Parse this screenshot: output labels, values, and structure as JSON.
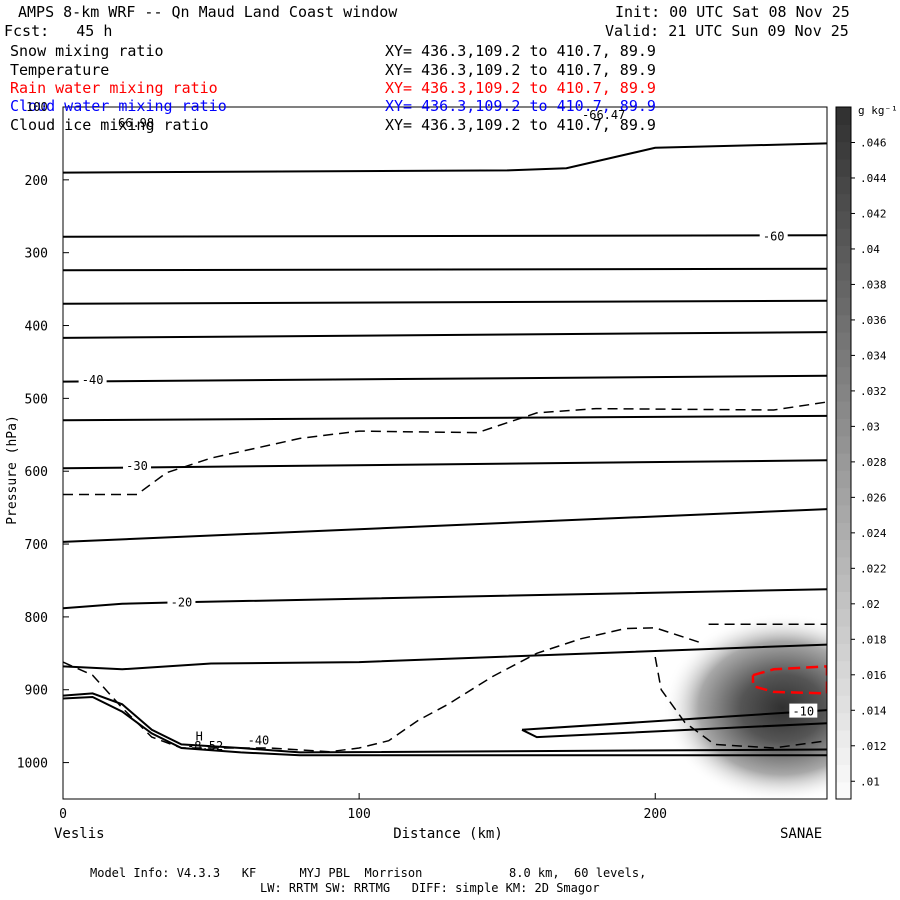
{
  "header": {
    "title": "AMPS 8-km WRF -- Qn Maud Land Coast window",
    "forecast": "Fcst:   45 h",
    "init": "Init: 00 UTC Sat 08 Nov 25",
    "valid": "Valid: 21 UTC Sun 09 Nov 25"
  },
  "fields": [
    {
      "name": "Snow mixing ratio",
      "xy": "XY= 436.3,109.2 to 410.7, 89.9",
      "color": "#000000"
    },
    {
      "name": "Temperature",
      "xy": "XY= 436.3,109.2 to 410.7, 89.9",
      "color": "#000000"
    },
    {
      "name": "Rain water mixing ratio",
      "xy": "XY= 436.3,109.2 to 410.7, 89.9",
      "color": "#ff0000"
    },
    {
      "name": "Cloud water mixing ratio",
      "xy": "XY= 436.3,109.2 to 410.7, 89.9",
      "color": "#0000ff"
    },
    {
      "name": "Cloud ice mixing ratio",
      "xy": "XY= 436.3,109.2 to 410.7, 89.9",
      "color": "#000000"
    }
  ],
  "overlap_labels": {
    "a": "100",
    "b": "66.98",
    "c": "-66.47"
  },
  "footer": {
    "line1": "Model Info: V4.3.3   KF      MYJ PBL  Morrison            8.0 km,  60 levels,",
    "line2": "LW: RRTM SW: RRTMG   DIFF: simple KM: 2D Smagor"
  },
  "chart_data": {
    "type": "cross-section",
    "xlabel": "Distance (km)",
    "ylabel": "Pressure (hPa)",
    "xlim": [
      0,
      258
    ],
    "ylim": [
      1050,
      100
    ],
    "x_ticks": [
      0,
      100,
      200
    ],
    "y_ticks": [
      200,
      300,
      400,
      500,
      600,
      700,
      800,
      900,
      1000
    ],
    "left_endpoint": "Veslis",
    "right_endpoint": "SANAE",
    "colorbar": {
      "unit": "g kg⁻¹",
      "min": 0.009,
      "max": 0.048,
      "tick_values": [
        0.046,
        0.044,
        0.042,
        0.04,
        0.038,
        0.036,
        0.034,
        0.032,
        0.03,
        0.028,
        0.026,
        0.024,
        0.022,
        0.02,
        0.018,
        0.016,
        0.014,
        0.012,
        0.01
      ],
      "tick_labels": [
        ".046",
        ".044",
        ".042",
        ".04",
        ".038",
        ".036",
        ".034",
        ".032",
        ".03",
        ".028",
        ".026",
        ".024",
        ".022",
        ".02",
        ".018",
        ".016",
        ".014",
        ".012",
        ".01"
      ]
    },
    "shaded_snow": {
      "x_center": 243,
      "p_center": 925,
      "peak": 0.046
    },
    "temperature_isotherms": [
      {
        "points": [
          [
            0,
            190
          ],
          [
            150,
            187
          ],
          [
            170,
            184
          ],
          [
            200,
            156
          ],
          [
            258,
            150
          ]
        ]
      },
      {
        "points": [
          [
            0,
            278
          ],
          [
            258,
            276
          ]
        ],
        "label": "-60",
        "label_at": [
          240,
          278
        ]
      },
      {
        "points": [
          [
            0,
            324
          ],
          [
            258,
            322
          ]
        ]
      },
      {
        "points": [
          [
            0,
            370
          ],
          [
            258,
            366
          ]
        ]
      },
      {
        "points": [
          [
            0,
            417
          ],
          [
            258,
            409
          ]
        ]
      },
      {
        "points": [
          [
            0,
            477
          ],
          [
            258,
            469
          ]
        ],
        "label": "-40",
        "label_at": [
          10,
          475
        ]
      },
      {
        "points": [
          [
            0,
            530
          ],
          [
            258,
            524
          ]
        ]
      },
      {
        "points": [
          [
            0,
            596
          ],
          [
            258,
            585
          ]
        ],
        "label": "-30",
        "label_at": [
          25,
          593
        ]
      },
      {
        "points": [
          [
            0,
            697
          ],
          [
            258,
            652
          ]
        ]
      },
      {
        "points": [
          [
            0,
            788
          ],
          [
            20,
            782
          ],
          [
            40,
            780
          ],
          [
            258,
            762
          ]
        ],
        "label": "-20",
        "label_at": [
          40,
          780
        ]
      },
      {
        "points": [
          [
            0,
            868
          ],
          [
            20,
            872
          ],
          [
            50,
            864
          ],
          [
            100,
            862
          ],
          [
            258,
            838
          ]
        ]
      },
      {
        "points": [
          [
            0,
            908
          ],
          [
            10,
            905
          ],
          [
            20,
            920
          ],
          [
            30,
            955
          ],
          [
            40,
            975
          ],
          [
            60,
            980
          ],
          [
            80,
            986
          ],
          [
            258,
            982
          ]
        ]
      },
      {
        "points": [
          [
            0,
            912
          ],
          [
            10,
            910
          ],
          [
            20,
            930
          ],
          [
            30,
            960
          ],
          [
            40,
            980
          ],
          [
            60,
            986
          ],
          [
            80,
            990
          ],
          [
            258,
            990
          ]
        ]
      },
      {
        "points": [
          [
            155,
            955
          ],
          [
            258,
            928
          ]
        ],
        "label": "-10",
        "label_at": [
          250,
          930
        ]
      },
      {
        "points": [
          [
            155,
            955
          ],
          [
            160,
            965
          ],
          [
            258,
            946
          ]
        ]
      }
    ],
    "cloud_ice_dashed": [
      {
        "points": [
          [
            0,
            632
          ],
          [
            25,
            632
          ],
          [
            35,
            602
          ],
          [
            50,
            582
          ],
          [
            80,
            555
          ],
          [
            100,
            545
          ],
          [
            120,
            546
          ],
          [
            140,
            547
          ],
          [
            160,
            520
          ],
          [
            180,
            514
          ],
          [
            240,
            516
          ],
          [
            258,
            505
          ]
        ]
      },
      {
        "points": [
          [
            0,
            862
          ],
          [
            10,
            880
          ],
          [
            20,
            925
          ],
          [
            30,
            965
          ],
          [
            40,
            980
          ],
          [
            70,
            980
          ],
          [
            90,
            985
          ],
          [
            100,
            980
          ],
          [
            110,
            970
          ],
          [
            120,
            942
          ],
          [
            130,
            920
          ],
          [
            145,
            882
          ],
          [
            160,
            850
          ],
          [
            175,
            830
          ],
          [
            190,
            816
          ],
          [
            200,
            815
          ],
          [
            215,
            835
          ]
        ]
      },
      {
        "points": [
          [
            218,
            810
          ],
          [
            258,
            810
          ]
        ]
      },
      {
        "points": [
          [
            200,
            855
          ],
          [
            202,
            900
          ],
          [
            210,
            945
          ],
          [
            220,
            975
          ],
          [
            240,
            980
          ],
          [
            258,
            970
          ]
        ]
      }
    ],
    "rain_dashed_red": [
      {
        "points": [
          [
            233,
            880
          ],
          [
            240,
            872
          ],
          [
            258,
            868
          ],
          [
            258,
            905
          ],
          [
            240,
            903
          ],
          [
            233,
            895
          ],
          [
            233,
            880
          ]
        ]
      }
    ],
    "contour_annotations": [
      {
        "text": "-40",
        "x": 66,
        "p": 975
      },
      {
        "text": "-8.52",
        "x": 48,
        "p": 983
      },
      {
        "text": "H",
        "x": 46,
        "p": 970
      }
    ]
  }
}
